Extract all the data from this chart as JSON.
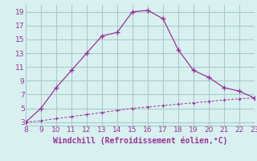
{
  "x": [
    8,
    9,
    10,
    11,
    12,
    13,
    14,
    15,
    16,
    17,
    18,
    19,
    20,
    21,
    22,
    23
  ],
  "y_upper": [
    3,
    5,
    8,
    10.5,
    13,
    15.5,
    16,
    19,
    19.2,
    18,
    13.5,
    10.5,
    9.5,
    8,
    7.5,
    6.5
  ],
  "y_lower": [
    3,
    3.2,
    3.5,
    3.8,
    4.1,
    4.4,
    4.7,
    5.0,
    5.2,
    5.4,
    5.6,
    5.8,
    6.0,
    6.2,
    6.4,
    6.5
  ],
  "line_color": "#993399",
  "bg_color": "#d8f0f0",
  "grid_color": "#aacccc",
  "xlabel": "Windchill (Refroidissement éolien,°C)",
  "xticks": [
    8,
    9,
    10,
    11,
    12,
    13,
    14,
    15,
    16,
    17,
    18,
    19,
    20,
    21,
    22,
    23
  ],
  "yticks": [
    3,
    5,
    7,
    9,
    11,
    13,
    15,
    17,
    19
  ],
  "xlim": [
    8,
    23
  ],
  "ylim": [
    2.5,
    20
  ],
  "xlabel_color": "#993399",
  "tick_color": "#993399",
  "axis_fontsize": 6.5,
  "xlabel_fontsize": 7
}
